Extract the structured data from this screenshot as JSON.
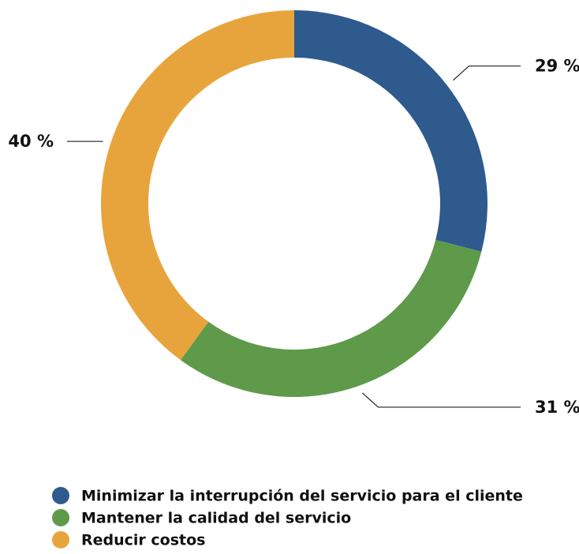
{
  "chart_data": {
    "type": "donut",
    "categories": [
      "Minimizar la interrupción del servicio para el cliente",
      "Mantener la calidad del servicio",
      "Reducir costos"
    ],
    "values": [
      29,
      31,
      40
    ],
    "value_labels": [
      "29 %",
      "31 %",
      "40 %"
    ],
    "colors": [
      "#2e5a8e",
      "#5e9a4a",
      "#e8a43c"
    ],
    "legend": "bottom-left"
  }
}
